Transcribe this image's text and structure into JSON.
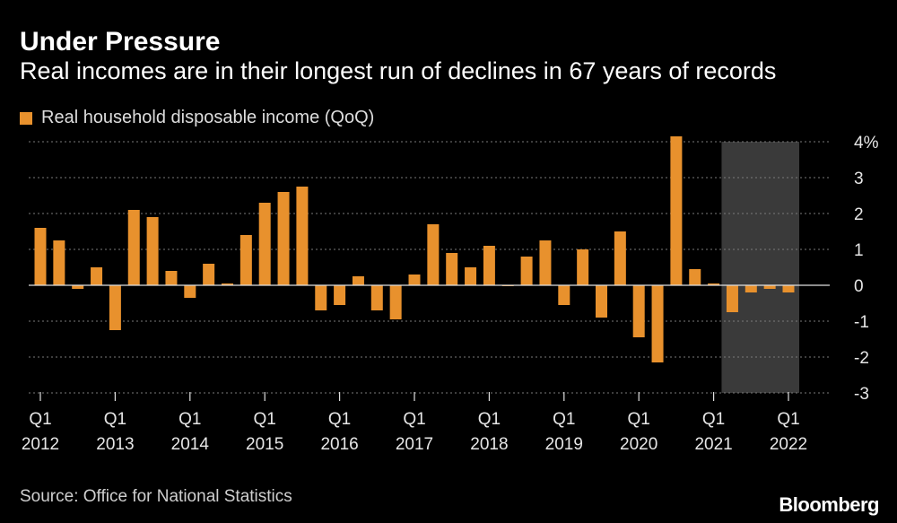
{
  "header": {
    "title": "Under Pressure",
    "subtitle": "Real incomes are in their longest run of declines in 67 years of records"
  },
  "legend": {
    "label": "Real household disposable income (QoQ)"
  },
  "footer": {
    "source": "Source: Office for National Statistics",
    "brand": "Bloomberg"
  },
  "colors": {
    "bar": "#e8912d",
    "background": "#000000",
    "shade": "#3a3a3a",
    "grid": "#7a7a7a"
  },
  "chart_data": {
    "type": "bar",
    "title": "Under Pressure",
    "subtitle": "Real incomes are in their longest run of declines in 67 years of records",
    "ylabel": "",
    "xlabel": "",
    "unit": "%",
    "ylim": [
      -3,
      4
    ],
    "yticks": [
      {
        "value": 4,
        "label": "4%"
      },
      {
        "value": 3,
        "label": "3"
      },
      {
        "value": 2,
        "label": "2"
      },
      {
        "value": 1,
        "label": "1"
      },
      {
        "value": 0,
        "label": "0"
      },
      {
        "value": -1,
        "label": "-1"
      },
      {
        "value": -2,
        "label": "-2"
      },
      {
        "value": -3,
        "label": "-3"
      }
    ],
    "grid": true,
    "legend_position": "top-left",
    "shaded_period": {
      "start_index": 37,
      "end_index": 40
    },
    "series": [
      {
        "name": "Real household disposable income (QoQ)",
        "values": [
          1.6,
          1.25,
          -0.1,
          0.5,
          -1.25,
          2.1,
          1.9,
          0.4,
          -0.35,
          0.6,
          0.05,
          1.4,
          2.3,
          2.6,
          2.75,
          -0.7,
          -0.55,
          0.25,
          -0.7,
          -0.95,
          0.3,
          1.7,
          0.9,
          0.5,
          1.1,
          0.0,
          0.8,
          1.25,
          -0.55,
          1.0,
          -0.9,
          1.5,
          -1.45,
          -2.15,
          4.15,
          0.45,
          0.05,
          -0.75,
          -0.2,
          -0.1,
          -0.2
        ]
      }
    ],
    "x_ticks": [
      {
        "index": 0,
        "quarter": "Q1",
        "year": "2012"
      },
      {
        "index": 4,
        "quarter": "Q1",
        "year": "2013"
      },
      {
        "index": 8,
        "quarter": "Q1",
        "year": "2014"
      },
      {
        "index": 12,
        "quarter": "Q1",
        "year": "2015"
      },
      {
        "index": 16,
        "quarter": "Q1",
        "year": "2016"
      },
      {
        "index": 20,
        "quarter": "Q1",
        "year": "2017"
      },
      {
        "index": 24,
        "quarter": "Q1",
        "year": "2018"
      },
      {
        "index": 28,
        "quarter": "Q1",
        "year": "2019"
      },
      {
        "index": 32,
        "quarter": "Q1",
        "year": "2020"
      },
      {
        "index": 36,
        "quarter": "Q1",
        "year": "2021"
      },
      {
        "index": 40,
        "quarter": "Q1",
        "year": "2022"
      }
    ]
  }
}
